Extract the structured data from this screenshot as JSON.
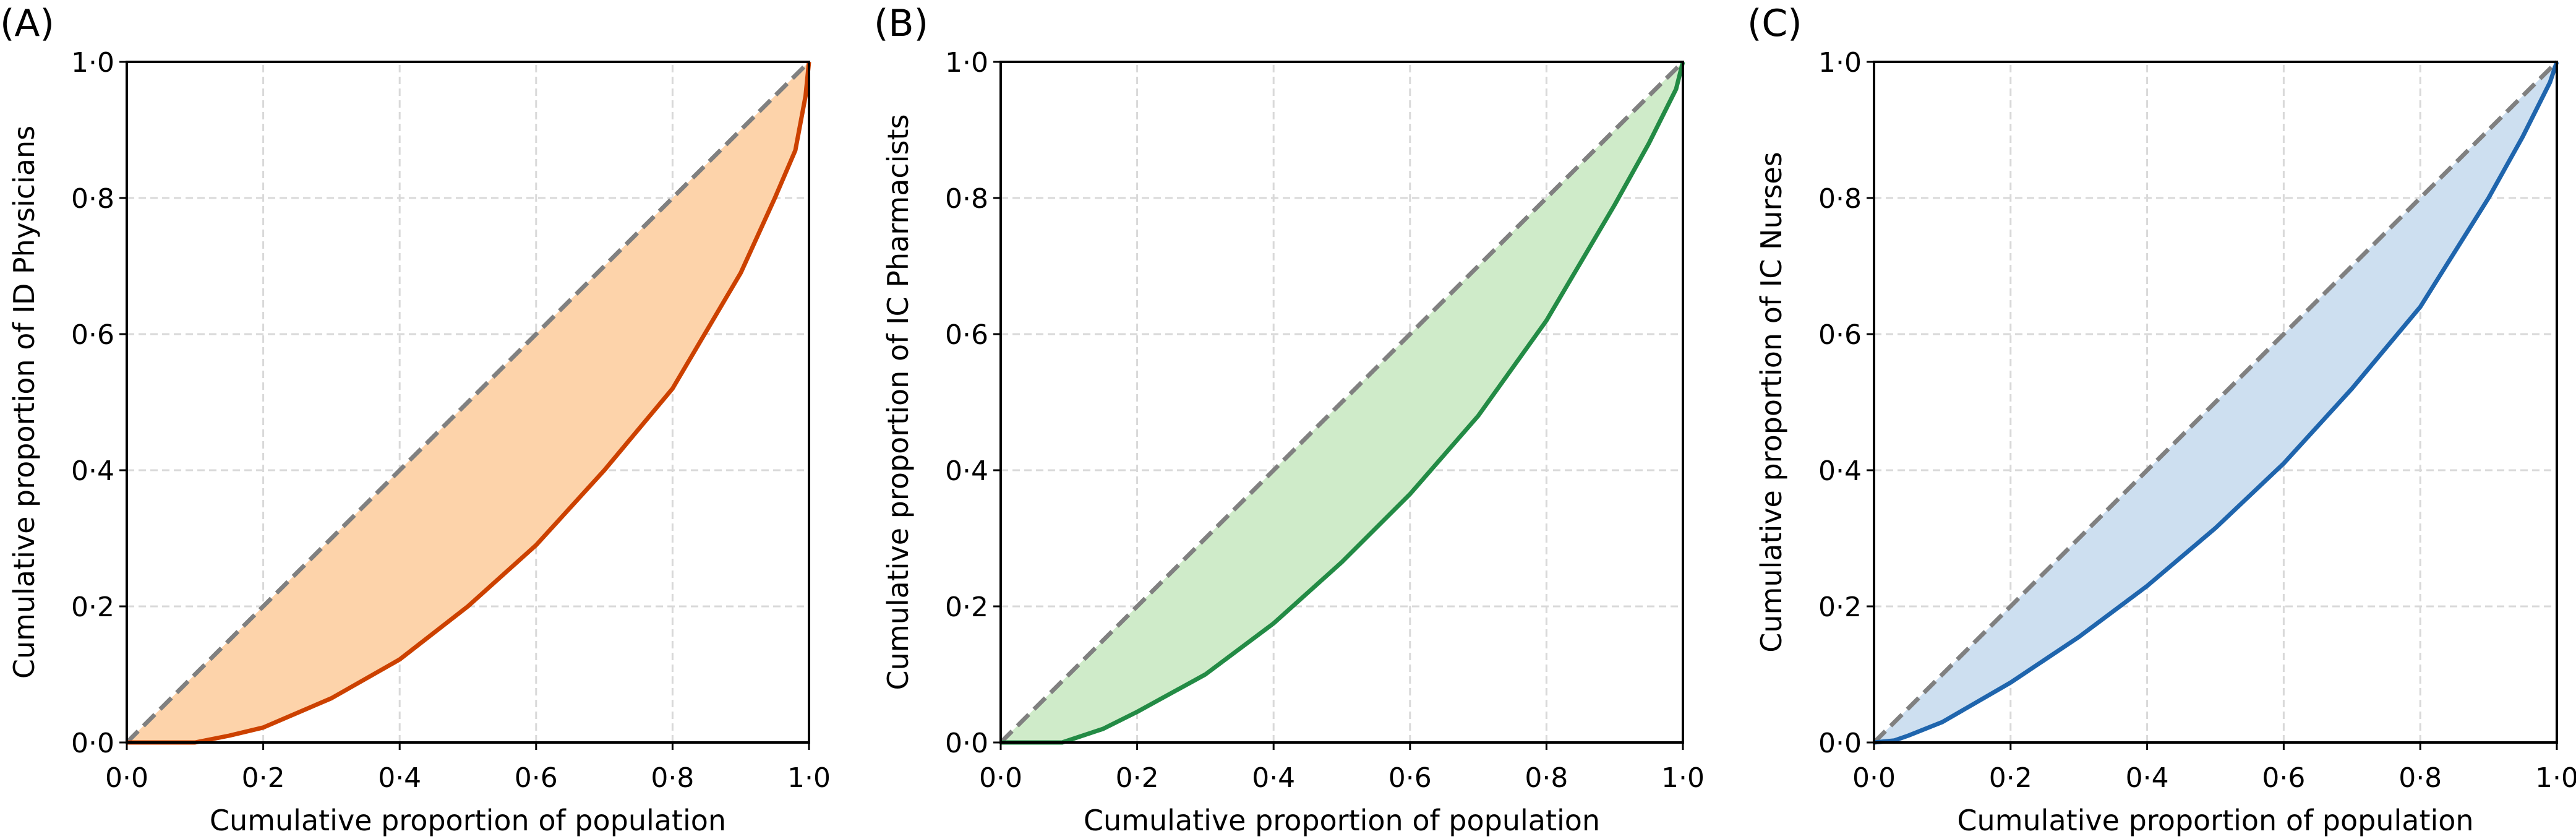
{
  "chart_data": [
    {
      "type": "area",
      "panel_label": "(A)",
      "xlabel": "Cumulative proportion of population",
      "ylabel": "Cumulative proportion of ID Physicians",
      "xlim": [
        0,
        1
      ],
      "ylim": [
        0,
        1
      ],
      "xticks": [
        "0·0",
        "0·2",
        "0·4",
        "0·6",
        "0·8",
        "1·0"
      ],
      "yticks": [
        "0·0",
        "0·2",
        "0·4",
        "0·6",
        "0·8",
        "1·0"
      ],
      "grid": true,
      "line_color": "#cc4100",
      "fill_color": "#fdd3aa",
      "equality_line": {
        "x": [
          0,
          1
        ],
        "y": [
          0,
          1
        ],
        "color": "#808080",
        "style": "dashed"
      },
      "x": [
        0,
        0.1,
        0.15,
        0.2,
        0.3,
        0.4,
        0.5,
        0.6,
        0.7,
        0.8,
        0.9,
        0.95,
        0.98,
        0.995,
        1.0
      ],
      "y": [
        0,
        0,
        0.01,
        0.022,
        0.065,
        0.122,
        0.2,
        0.29,
        0.4,
        0.52,
        0.69,
        0.8,
        0.87,
        0.95,
        1.0
      ]
    },
    {
      "type": "area",
      "panel_label": "(B)",
      "xlabel": "Cumulative proportion of population",
      "ylabel": "Cumulative proportion of IC Pharmacists",
      "xlim": [
        0,
        1
      ],
      "ylim": [
        0,
        1
      ],
      "xticks": [
        "0·0",
        "0·2",
        "0·4",
        "0·6",
        "0·8",
        "1·0"
      ],
      "yticks": [
        "0·0",
        "0·2",
        "0·4",
        "0·6",
        "0·8",
        "1·0"
      ],
      "grid": true,
      "line_color": "#238b45",
      "fill_color": "#cfebc9",
      "equality_line": {
        "x": [
          0,
          1
        ],
        "y": [
          0,
          1
        ],
        "color": "#808080",
        "style": "dashed"
      },
      "x": [
        0,
        0.09,
        0.15,
        0.2,
        0.3,
        0.4,
        0.5,
        0.6,
        0.7,
        0.8,
        0.9,
        0.95,
        0.99,
        1.0
      ],
      "y": [
        0,
        0,
        0.02,
        0.045,
        0.1,
        0.175,
        0.265,
        0.365,
        0.48,
        0.62,
        0.79,
        0.88,
        0.96,
        1.0
      ]
    },
    {
      "type": "area",
      "panel_label": "(C)",
      "xlabel": "Cumulative proportion of population",
      "ylabel": "Cumulative proportion of IC Nurses",
      "xlim": [
        0,
        1
      ],
      "ylim": [
        0,
        1
      ],
      "xticks": [
        "0·0",
        "0·2",
        "0·4",
        "0·6",
        "0·8",
        "1·0"
      ],
      "yticks": [
        "0·0",
        "0·2",
        "0·4",
        "0·6",
        "0·8",
        "1·0"
      ],
      "grid": true,
      "line_color": "#1f65ad",
      "fill_color": "#cddff0",
      "equality_line": {
        "x": [
          0,
          1
        ],
        "y": [
          0,
          1
        ],
        "color": "#808080",
        "style": "dashed"
      },
      "x": [
        0,
        0.03,
        0.05,
        0.1,
        0.2,
        0.3,
        0.4,
        0.5,
        0.6,
        0.7,
        0.8,
        0.9,
        0.95,
        0.99,
        1.0
      ],
      "y": [
        0,
        0.003,
        0.01,
        0.03,
        0.088,
        0.155,
        0.23,
        0.315,
        0.41,
        0.52,
        0.64,
        0.8,
        0.89,
        0.97,
        1.0
      ]
    }
  ]
}
